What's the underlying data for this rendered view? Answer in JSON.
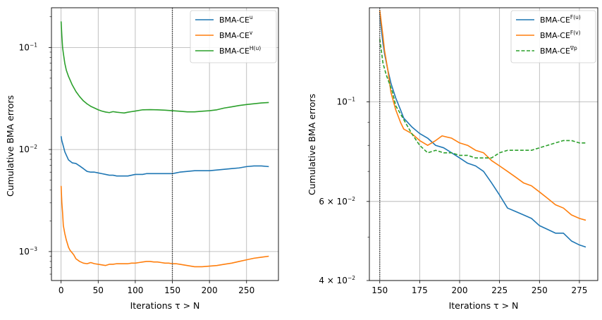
{
  "chart_data": [
    {
      "type": "line",
      "xlabel": "Iterations τ > N",
      "ylabel": "Cumulative BMA errors",
      "yscale": "log",
      "xlim": [
        -13,
        293
      ],
      "ylim": [
        0.00052,
        0.245
      ],
      "xticks": [
        0,
        50,
        100,
        150,
        200,
        250
      ],
      "xtick_labels": [
        "0",
        "50",
        "100",
        "150",
        "200",
        "250"
      ],
      "yticks": [
        0.001,
        0.01,
        0.1
      ],
      "ytick_base": "10",
      "ytick_exponents": [
        "−3",
        "−2",
        "−1"
      ],
      "grid": true,
      "vline": 150,
      "legend_position": "top-right",
      "series": [
        {
          "name": "BMA-CE",
          "sup": "u",
          "color": "#1f77b4",
          "dashed": false,
          "x": [
            0,
            1,
            3,
            5,
            8,
            10,
            15,
            20,
            25,
            30,
            35,
            40,
            45,
            50,
            55,
            60,
            65,
            70,
            75,
            80,
            85,
            90,
            95,
            100,
            105,
            110,
            115,
            120,
            125,
            130,
            135,
            140,
            145,
            150,
            155,
            160,
            170,
            180,
            190,
            200,
            210,
            220,
            230,
            240,
            250,
            260,
            270,
            280
          ],
          "y": [
            0.0135,
            0.0122,
            0.0108,
            0.0095,
            0.0085,
            0.0079,
            0.0074,
            0.0073,
            0.0069,
            0.0065,
            0.0061,
            0.006,
            0.006,
            0.0059,
            0.0058,
            0.0057,
            0.0056,
            0.0056,
            0.0055,
            0.0055,
            0.0055,
            0.0055,
            0.0056,
            0.0057,
            0.0057,
            0.0057,
            0.0058,
            0.0058,
            0.0058,
            0.0058,
            0.0058,
            0.0058,
            0.0058,
            0.0058,
            0.0059,
            0.006,
            0.0061,
            0.0062,
            0.0062,
            0.0062,
            0.0063,
            0.0064,
            0.0065,
            0.0066,
            0.0068,
            0.0069,
            0.0069,
            0.0068
          ]
        },
        {
          "name": "BMA-CE",
          "sup": "v",
          "color": "#ff7f0e",
          "dashed": false,
          "x": [
            0,
            1,
            2,
            3,
            5,
            7,
            10,
            12,
            15,
            17,
            20,
            25,
            30,
            35,
            40,
            45,
            50,
            55,
            60,
            65,
            70,
            75,
            80,
            85,
            90,
            95,
            100,
            105,
            110,
            115,
            120,
            125,
            130,
            135,
            140,
            145,
            150,
            155,
            160,
            170,
            180,
            190,
            200,
            210,
            220,
            230,
            240,
            250,
            260,
            270,
            280
          ],
          "y": [
            0.0044,
            0.003,
            0.0024,
            0.0018,
            0.0015,
            0.0013,
            0.0011,
            0.00103,
            0.00097,
            0.00093,
            0.00085,
            0.0008,
            0.00077,
            0.00076,
            0.00078,
            0.00076,
            0.00075,
            0.00074,
            0.00073,
            0.00075,
            0.00075,
            0.00076,
            0.00076,
            0.00076,
            0.00076,
            0.00077,
            0.00077,
            0.00078,
            0.00079,
            0.0008,
            0.0008,
            0.00079,
            0.00079,
            0.00078,
            0.00077,
            0.00077,
            0.00076,
            0.00076,
            0.00075,
            0.00073,
            0.00071,
            0.00071,
            0.00072,
            0.00073,
            0.00075,
            0.00077,
            0.0008,
            0.00083,
            0.00086,
            0.00088,
            0.0009
          ]
        },
        {
          "name": "BMA-CE",
          "sup": "H(u)",
          "color": "#2ca02c",
          "dashed": false,
          "x": [
            0,
            1,
            2,
            3,
            5,
            7,
            10,
            15,
            20,
            25,
            30,
            35,
            40,
            45,
            50,
            55,
            60,
            65,
            70,
            75,
            80,
            85,
            90,
            95,
            100,
            110,
            120,
            130,
            140,
            150,
            160,
            170,
            180,
            190,
            200,
            210,
            220,
            230,
            240,
            250,
            260,
            270,
            280
          ],
          "y": [
            0.18,
            0.13,
            0.1,
            0.088,
            0.07,
            0.06,
            0.052,
            0.043,
            0.037,
            0.033,
            0.03,
            0.028,
            0.0265,
            0.0255,
            0.0245,
            0.0238,
            0.0233,
            0.023,
            0.0235,
            0.0232,
            0.023,
            0.0228,
            0.0232,
            0.0235,
            0.0238,
            0.0245,
            0.0246,
            0.0245,
            0.0243,
            0.024,
            0.0237,
            0.0234,
            0.0234,
            0.0237,
            0.024,
            0.0245,
            0.0255,
            0.0262,
            0.027,
            0.0276,
            0.0281,
            0.0286,
            0.0289
          ]
        }
      ],
      "legend": [
        {
          "label": "BMA-CE",
          "sup": "u"
        },
        {
          "label": "BMA-CE",
          "sup": "v"
        },
        {
          "label": "BMA-CE",
          "sup": "H(u)"
        }
      ]
    },
    {
      "type": "line",
      "xlabel": "Iterations τ > N",
      "ylabel": "Cumulative BMA errors",
      "yscale": "log",
      "xlim": [
        143.5,
        286.5
      ],
      "ylim": [
        0.04,
        0.162
      ],
      "xticks": [
        150,
        175,
        200,
        225,
        250,
        275
      ],
      "xtick_labels": [
        "150",
        "175",
        "200",
        "225",
        "250",
        "275"
      ],
      "yticks": [
        0.04,
        0.06,
        0.1
      ],
      "ytick_labels": [
        {
          "value": 0.04,
          "mantissa": "4 × 10",
          "exponent": "−2"
        },
        {
          "value": 0.06,
          "mantissa": "6 × 10",
          "exponent": "−2"
        },
        {
          "value": 0.1,
          "mantissa": "10",
          "exponent": "−1"
        }
      ],
      "grid": true,
      "vline": 150,
      "legend_position": "top-right",
      "series": [
        {
          "name": "BMA-CE",
          "sup": "F(u)",
          "color": "#1f77b4",
          "dashed": false,
          "x": [
            150,
            151,
            152,
            153,
            155,
            157,
            160,
            163,
            165,
            170,
            175,
            180,
            185,
            190,
            195,
            200,
            205,
            210,
            215,
            220,
            225,
            230,
            235,
            240,
            245,
            250,
            255,
            260,
            265,
            270,
            275,
            279
          ],
          "y": [
            0.158,
            0.145,
            0.135,
            0.128,
            0.118,
            0.11,
            0.102,
            0.096,
            0.092,
            0.088,
            0.085,
            0.083,
            0.08,
            0.079,
            0.077,
            0.075,
            0.073,
            0.072,
            0.07,
            0.066,
            0.062,
            0.058,
            0.057,
            0.056,
            0.055,
            0.053,
            0.052,
            0.051,
            0.051,
            0.049,
            0.048,
            0.0475
          ]
        },
        {
          "name": "BMA-CE",
          "sup": "F(v)",
          "color": "#ff7f0e",
          "dashed": false,
          "x": [
            150,
            151,
            152,
            153,
            155,
            157,
            160,
            163,
            165,
            170,
            175,
            180,
            185,
            189,
            195,
            200,
            205,
            210,
            215,
            220,
            225,
            230,
            235,
            240,
            245,
            250,
            255,
            260,
            265,
            270,
            275,
            279
          ],
          "y": [
            0.16,
            0.15,
            0.14,
            0.13,
            0.118,
            0.105,
            0.096,
            0.09,
            0.087,
            0.085,
            0.082,
            0.08,
            0.082,
            0.084,
            0.083,
            0.081,
            0.08,
            0.078,
            0.077,
            0.074,
            0.072,
            0.07,
            0.068,
            0.066,
            0.065,
            0.063,
            0.061,
            0.059,
            0.058,
            0.056,
            0.055,
            0.0545
          ]
        },
        {
          "name": "BMA-CE",
          "sup": "∇p",
          "color": "#2ca02c",
          "dashed": true,
          "x": [
            150,
            151,
            152,
            154,
            156,
            158,
            160,
            163,
            166,
            170,
            175,
            180,
            185,
            190,
            195,
            200,
            205,
            210,
            215,
            220,
            225,
            230,
            235,
            240,
            245,
            250,
            255,
            260,
            265,
            270,
            275,
            279
          ],
          "y": [
            0.138,
            0.13,
            0.122,
            0.115,
            0.11,
            0.105,
            0.098,
            0.094,
            0.09,
            0.085,
            0.08,
            0.077,
            0.078,
            0.077,
            0.077,
            0.076,
            0.076,
            0.075,
            0.075,
            0.075,
            0.077,
            0.078,
            0.078,
            0.078,
            0.078,
            0.079,
            0.08,
            0.081,
            0.082,
            0.082,
            0.081,
            0.081
          ]
        }
      ],
      "legend": [
        {
          "label": "BMA-CE",
          "sup": "F(u)"
        },
        {
          "label": "BMA-CE",
          "sup": "F(v)"
        },
        {
          "label": "BMA-CE",
          "sup": "∇p"
        }
      ]
    }
  ]
}
